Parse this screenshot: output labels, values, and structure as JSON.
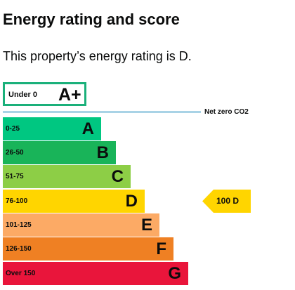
{
  "heading": "Energy rating and score",
  "summary": "This property’s energy rating is D.",
  "aplus": {
    "range": "Under 0",
    "letter": "A+",
    "border_color": "#1ab07a"
  },
  "net_zero": {
    "label": "Net zero CO2",
    "line_color": "#a9d3e6"
  },
  "bands": [
    {
      "range": "0-25",
      "letter": "A",
      "color": "#00c781"
    },
    {
      "range": "26-50",
      "letter": "B",
      "color": "#19b459"
    },
    {
      "range": "51-75",
      "letter": "C",
      "color": "#8dce46"
    },
    {
      "range": "76-100",
      "letter": "D",
      "color": "#ffd500"
    },
    {
      "range": "101-125",
      "letter": "E",
      "color": "#fcaa65"
    },
    {
      "range": "126-150",
      "letter": "F",
      "color": "#ef8023"
    },
    {
      "range": "Over 150",
      "letter": "G",
      "color": "#e9153b"
    }
  ],
  "current": {
    "score": "100",
    "letter": "D",
    "label": "100  D",
    "color": "#ffd500"
  }
}
